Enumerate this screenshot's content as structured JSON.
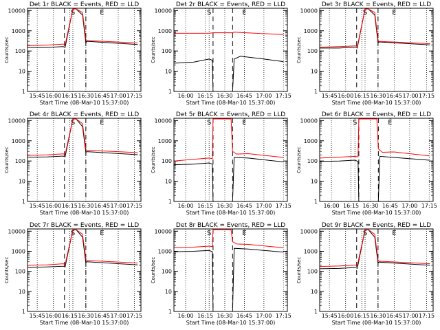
{
  "chart_data": {
    "type": "line",
    "xlabel": "Start Time (08-Mar-10 15:37:00)",
    "ylabel": "Counts/sec",
    "x_tick_labels": [
      "15:45",
      "16:00",
      "16:15",
      "16:30",
      "16:45",
      "17:00",
      "17:15"
    ],
    "y_tick_labels": [
      "1",
      "10",
      "100",
      "1000",
      "10000"
    ],
    "ylim": [
      1,
      10000
    ],
    "y_scale": "log",
    "legend": "",
    "markers": {
      "S": 16.3,
      "E": 16.75
    },
    "colors": {
      "events": "#000000",
      "lld": "#ff0000",
      "axes": "#000000"
    },
    "panels": [
      {
        "title": "Det 1r BLACK = Events, RED = LLD",
        "x_ticks": [
          15.75,
          16.0,
          16.25,
          16.5,
          16.75,
          17.0,
          17.25
        ],
        "xlim": [
          15.6,
          17.35
        ],
        "dashes": [
          16.17,
          16.5
        ],
        "series": [
          {
            "x": [
              15.6,
              15.9,
              16.15,
              16.18,
              16.3,
              16.35,
              16.45,
              16.5,
              16.51,
              17.3
            ],
            "y": [
              150,
              150,
              165,
              150,
              12000,
              12000,
              6000,
              240,
              300,
              210
            ]
          },
          {
            "x": [
              15.6,
              15.9,
              16.15,
              16.18,
              16.3,
              16.35,
              16.45,
              16.5,
              16.51,
              17.3
            ],
            "y": [
              185,
              195,
              220,
              200,
              12000,
              12000,
              8000,
              380,
              330,
              250
            ]
          }
        ]
      },
      {
        "title": "Det 2r BLACK = Events, RED = LLD",
        "x_ticks": [
          16.0,
          16.25,
          16.5,
          16.75,
          17.0,
          17.25
        ],
        "xlim": [
          15.85,
          17.3
        ],
        "dashes": [
          16.35,
          16.6
        ],
        "series": [
          {
            "x": [
              15.85,
              16.1,
              16.3,
              16.34,
              16.35,
              16.6,
              16.62,
              16.7,
              17.0,
              17.25
            ],
            "y": [
              25,
              28,
              40,
              35,
              0,
              0,
              40,
              55,
              40,
              30
            ]
          },
          {
            "x": [
              15.85,
              16.3,
              16.35,
              16.6,
              16.62,
              17.25
            ],
            "y": [
              750,
              750,
              800,
              800,
              850,
              650
            ]
          }
        ]
      },
      {
        "title": "Det 3r BLACK = Events, RED = LLD",
        "x_ticks": [
          15.75,
          16.0,
          16.25,
          16.5,
          16.75,
          17.0,
          17.25
        ],
        "xlim": [
          15.6,
          17.35
        ],
        "dashes": [
          16.17,
          16.5
        ],
        "series": [
          {
            "x": [
              15.6,
              15.9,
              16.15,
              16.18,
              16.3,
              16.35,
              16.45,
              16.5,
              16.51,
              17.3
            ],
            "y": [
              140,
              140,
              155,
              140,
              12000,
              12000,
              6000,
              250,
              280,
              200
            ]
          },
          {
            "x": [
              15.6,
              15.9,
              16.15,
              16.18,
              16.3,
              16.35,
              16.45,
              16.5,
              16.51,
              17.3
            ],
            "y": [
              155,
              165,
              180,
              165,
              12000,
              12000,
              8000,
              350,
              300,
              230
            ]
          }
        ]
      },
      {
        "title": "Det 4r BLACK = Events, RED = LLD",
        "x_ticks": [
          15.75,
          16.0,
          16.25,
          16.5,
          16.75,
          17.0,
          17.25
        ],
        "xlim": [
          15.6,
          17.35
        ],
        "dashes": [
          16.17,
          16.5
        ],
        "series": [
          {
            "x": [
              15.6,
              15.9,
              16.15,
              16.18,
              16.3,
              16.35,
              16.45,
              16.5,
              16.51,
              17.3
            ],
            "y": [
              155,
              160,
              175,
              160,
              12000,
              12000,
              5000,
              260,
              290,
              205
            ]
          },
          {
            "x": [
              15.6,
              15.9,
              16.15,
              16.18,
              16.3,
              16.35,
              16.45,
              16.5,
              16.51,
              17.3
            ],
            "y": [
              190,
              200,
              225,
              210,
              12000,
              12000,
              7000,
              380,
              340,
              260
            ]
          }
        ]
      },
      {
        "title": "Det 5r BLACK = Events, RED = LLD",
        "x_ticks": [
          16.0,
          16.25,
          16.5,
          16.75,
          17.0,
          17.25
        ],
        "xlim": [
          15.85,
          17.3
        ],
        "dashes": [
          16.35,
          16.6
        ],
        "series": [
          {
            "x": [
              15.85,
              16.1,
              16.3,
              16.34,
              16.35,
              16.6,
              16.62,
              16.8,
              17.25
            ],
            "y": [
              65,
              70,
              80,
              70,
              0,
              0,
              150,
              140,
              90
            ]
          },
          {
            "x": [
              15.85,
              16.1,
              16.3,
              16.34,
              16.35,
              16.45,
              16.58,
              16.6,
              16.65,
              16.8,
              17.25
            ],
            "y": [
              100,
              120,
              140,
              130,
              12000,
              12000,
              12000,
              300,
              220,
              230,
              150
            ]
          }
        ]
      },
      {
        "title": "Det 6r BLACK = Events, RED = LLD",
        "x_ticks": [
          16.0,
          16.25,
          16.5,
          16.75,
          17.0,
          17.25
        ],
        "xlim": [
          15.85,
          17.3
        ],
        "dashes": [
          16.35,
          16.6
        ],
        "series": [
          {
            "x": [
              15.85,
              16.1,
              16.3,
              16.34,
              16.35,
              16.6,
              16.62,
              16.8,
              17.25
            ],
            "y": [
              95,
              100,
              110,
              95,
              0,
              0,
              170,
              150,
              110
            ]
          },
          {
            "x": [
              15.85,
              16.1,
              16.3,
              16.34,
              16.35,
              16.45,
              16.58,
              16.6,
              16.65,
              16.8,
              17.25
            ],
            "y": [
              140,
              155,
              170,
              160,
              12000,
              12000,
              12000,
              400,
              270,
              280,
              180
            ]
          }
        ]
      },
      {
        "title": "Det 7r BLACK = Events, RED = LLD",
        "x_ticks": [
          15.75,
          16.0,
          16.25,
          16.5,
          16.75,
          17.0,
          17.25
        ],
        "xlim": [
          15.6,
          17.35
        ],
        "dashes": [
          16.17,
          16.5
        ],
        "series": [
          {
            "x": [
              15.6,
              15.9,
              16.15,
              16.18,
              16.3,
              16.35,
              16.45,
              16.5,
              16.51,
              17.3
            ],
            "y": [
              155,
              165,
              180,
              165,
              12000,
              12000,
              5000,
              260,
              300,
              210
            ]
          },
          {
            "x": [
              15.6,
              15.9,
              16.15,
              16.18,
              16.3,
              16.35,
              16.45,
              16.5,
              16.51,
              17.3
            ],
            "y": [
              200,
              210,
              240,
              220,
              12000,
              12000,
              7000,
              400,
              350,
              260
            ]
          }
        ]
      },
      {
        "title": "Det 8r BLACK = Events, RED = LLD",
        "x_ticks": [
          16.0,
          16.25,
          16.5,
          16.75,
          17.0,
          17.25
        ],
        "xlim": [
          15.85,
          17.3
        ],
        "dashes": [
          16.35,
          16.6
        ],
        "series": [
          {
            "x": [
              15.85,
              16.1,
              16.3,
              16.34,
              16.35,
              16.6,
              16.62,
              16.8,
              17.25
            ],
            "y": [
              950,
              1000,
              1100,
              950,
              0,
              0,
              1400,
              1300,
              900
            ]
          },
          {
            "x": [
              15.85,
              16.1,
              16.3,
              16.34,
              16.35,
              16.45,
              16.58,
              16.6,
              16.65,
              16.8,
              17.25
            ],
            "y": [
              1500,
              1600,
              1800,
              1700,
              12000,
              12000,
              12000,
              3000,
              2300,
              2200,
              1500
            ]
          }
        ]
      },
      {
        "title": "Det 9r BLACK = Events, RED = LLD",
        "x_ticks": [
          15.75,
          16.0,
          16.25,
          16.5,
          16.75,
          17.0,
          17.25
        ],
        "xlim": [
          15.6,
          17.35
        ],
        "dashes": [
          16.17,
          16.5
        ],
        "series": [
          {
            "x": [
              15.6,
              15.9,
              16.15,
              16.18,
              16.3,
              16.35,
              16.45,
              16.5,
              16.51,
              17.3
            ],
            "y": [
              135,
              140,
              155,
              140,
              12000,
              12000,
              5000,
              250,
              290,
              200
            ]
          },
          {
            "x": [
              15.6,
              15.9,
              16.15,
              16.18,
              16.3,
              16.35,
              16.45,
              16.5,
              16.51,
              17.3
            ],
            "y": [
              175,
              185,
              205,
              190,
              12000,
              12000,
              7000,
              360,
              320,
              240
            ]
          }
        ]
      }
    ]
  }
}
